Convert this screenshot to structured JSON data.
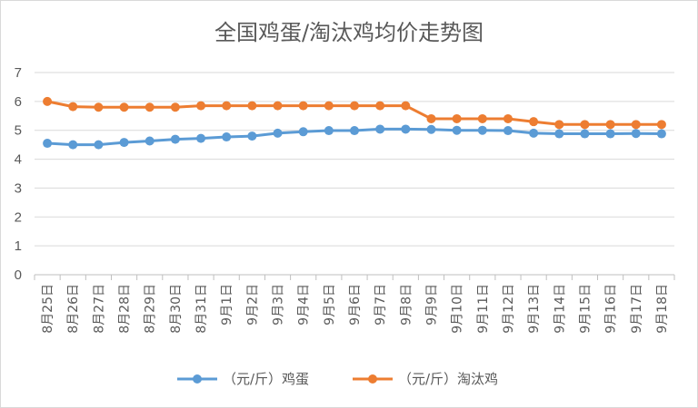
{
  "chart_data": {
    "type": "line",
    "title": "全国鸡蛋/淘汰鸡均价走势图",
    "categories": [
      "8月25日",
      "8月26日",
      "8月27日",
      "8月28日",
      "8月29日",
      "8月30日",
      "8月31日",
      "9月1日",
      "9月2日",
      "9月3日",
      "9月4日",
      "9月5日",
      "9月6日",
      "9月7日",
      "9月8日",
      "9月9日",
      "9月10日",
      "9月11日",
      "9月12日",
      "9月13日",
      "9月14日",
      "9月15日",
      "9月16日",
      "9月17日",
      "9月18日"
    ],
    "series": [
      {
        "name": "（元/斤）鸡蛋",
        "color": "#5b9bd5",
        "values": [
          4.55,
          4.5,
          4.5,
          4.58,
          4.63,
          4.69,
          4.72,
          4.77,
          4.8,
          4.9,
          4.95,
          4.99,
          4.99,
          5.04,
          5.04,
          5.03,
          5.0,
          5.0,
          4.99,
          4.9,
          4.88,
          4.88,
          4.88,
          4.89,
          4.88
        ]
      },
      {
        "name": "（元/斤）淘汰鸡",
        "color": "#ed7d31",
        "values": [
          6.0,
          5.82,
          5.8,
          5.8,
          5.8,
          5.8,
          5.85,
          5.85,
          5.85,
          5.85,
          5.85,
          5.85,
          5.85,
          5.85,
          5.85,
          5.4,
          5.4,
          5.4,
          5.4,
          5.3,
          5.2,
          5.2,
          5.2,
          5.2,
          5.2
        ]
      }
    ],
    "yticks": [
      "0",
      "1",
      "2",
      "3",
      "4",
      "5",
      "6",
      "7"
    ],
    "ylim": [
      0,
      7
    ],
    "grid": true,
    "legend_position": "bottom"
  }
}
